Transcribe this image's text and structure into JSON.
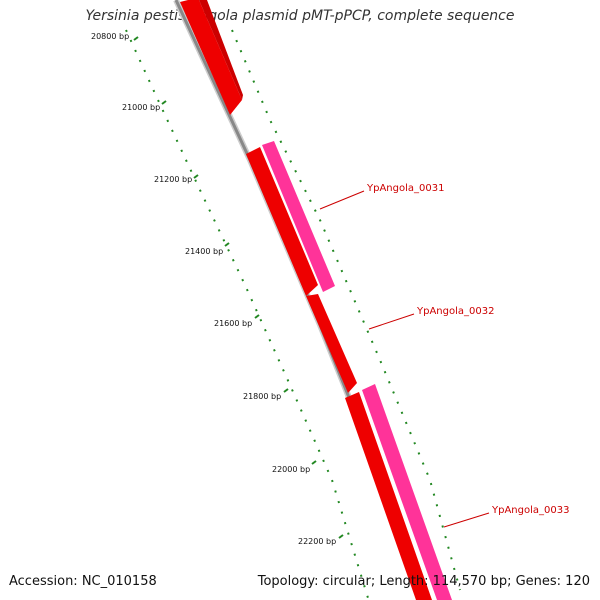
{
  "header": {
    "title": "Yersinia pestis Angola plasmid pMT-pPCP, complete sequence"
  },
  "footer": {
    "accession": "Accession: NC_010158",
    "summary": "Topology: circular; Length: 114,570 bp; Genes: 120"
  },
  "scale": {
    "labels": [
      "20800 bp",
      "21000 bp",
      "21200 bp",
      "21400 bp",
      "21600 bp",
      "21800 bp",
      "22000 bp",
      "22200 bp"
    ]
  },
  "genes": [
    {
      "name": "YpAngola_0031"
    },
    {
      "name": "YpAngola_0032"
    },
    {
      "name": "YpAngola_0033"
    }
  ],
  "colors": {
    "backbone": "#888888",
    "cds": "#ee0000",
    "gene": "#ff3399",
    "ticks": "#228822",
    "label_line": "#cc0000"
  }
}
